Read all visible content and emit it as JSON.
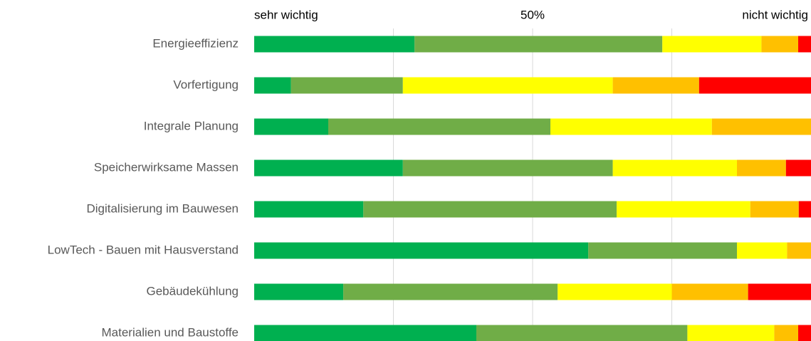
{
  "chart_data": {
    "type": "stacked_barh",
    "categories": [
      "Energieeffizienz",
      "Vorfertigung",
      "Integrale Planung",
      "Speicherwirksame Massen",
      "Digitalisierung im Bauwesen",
      "LowTech - Bauen mit Hausverstand",
      "Gebäudekühlung",
      "Materialien und Baustoffe"
    ],
    "series": [
      {
        "color": "#00b050",
        "values": [
          28.8,
          6.6,
          13.3,
          26.7,
          19.6,
          60.0,
          16.0,
          39.9
        ]
      },
      {
        "color": "#70ad47",
        "values": [
          44.5,
          20.1,
          39.9,
          37.7,
          45.5,
          26.7,
          38.5,
          37.9
        ]
      },
      {
        "color": "#ffff00",
        "values": [
          17.8,
          37.7,
          29.0,
          22.3,
          24.0,
          9.0,
          20.5,
          15.6
        ]
      },
      {
        "color": "#ffc000",
        "values": [
          6.6,
          15.5,
          17.8,
          8.8,
          8.7,
          4.3,
          13.7,
          4.3
        ]
      },
      {
        "color": "#ff0000",
        "values": [
          2.3,
          20.1,
          0,
          4.5,
          2.2,
          0,
          11.4,
          2.3
        ]
      }
    ],
    "xlim": [
      0,
      100
    ],
    "xticks": [
      {
        "value": 0,
        "label": "sehr wichtig"
      },
      {
        "value": 50,
        "label": "50%"
      },
      {
        "value": 100,
        "label": "nicht wichtig"
      }
    ],
    "xgrid": [
      25,
      50,
      75
    ],
    "grid": true
  }
}
